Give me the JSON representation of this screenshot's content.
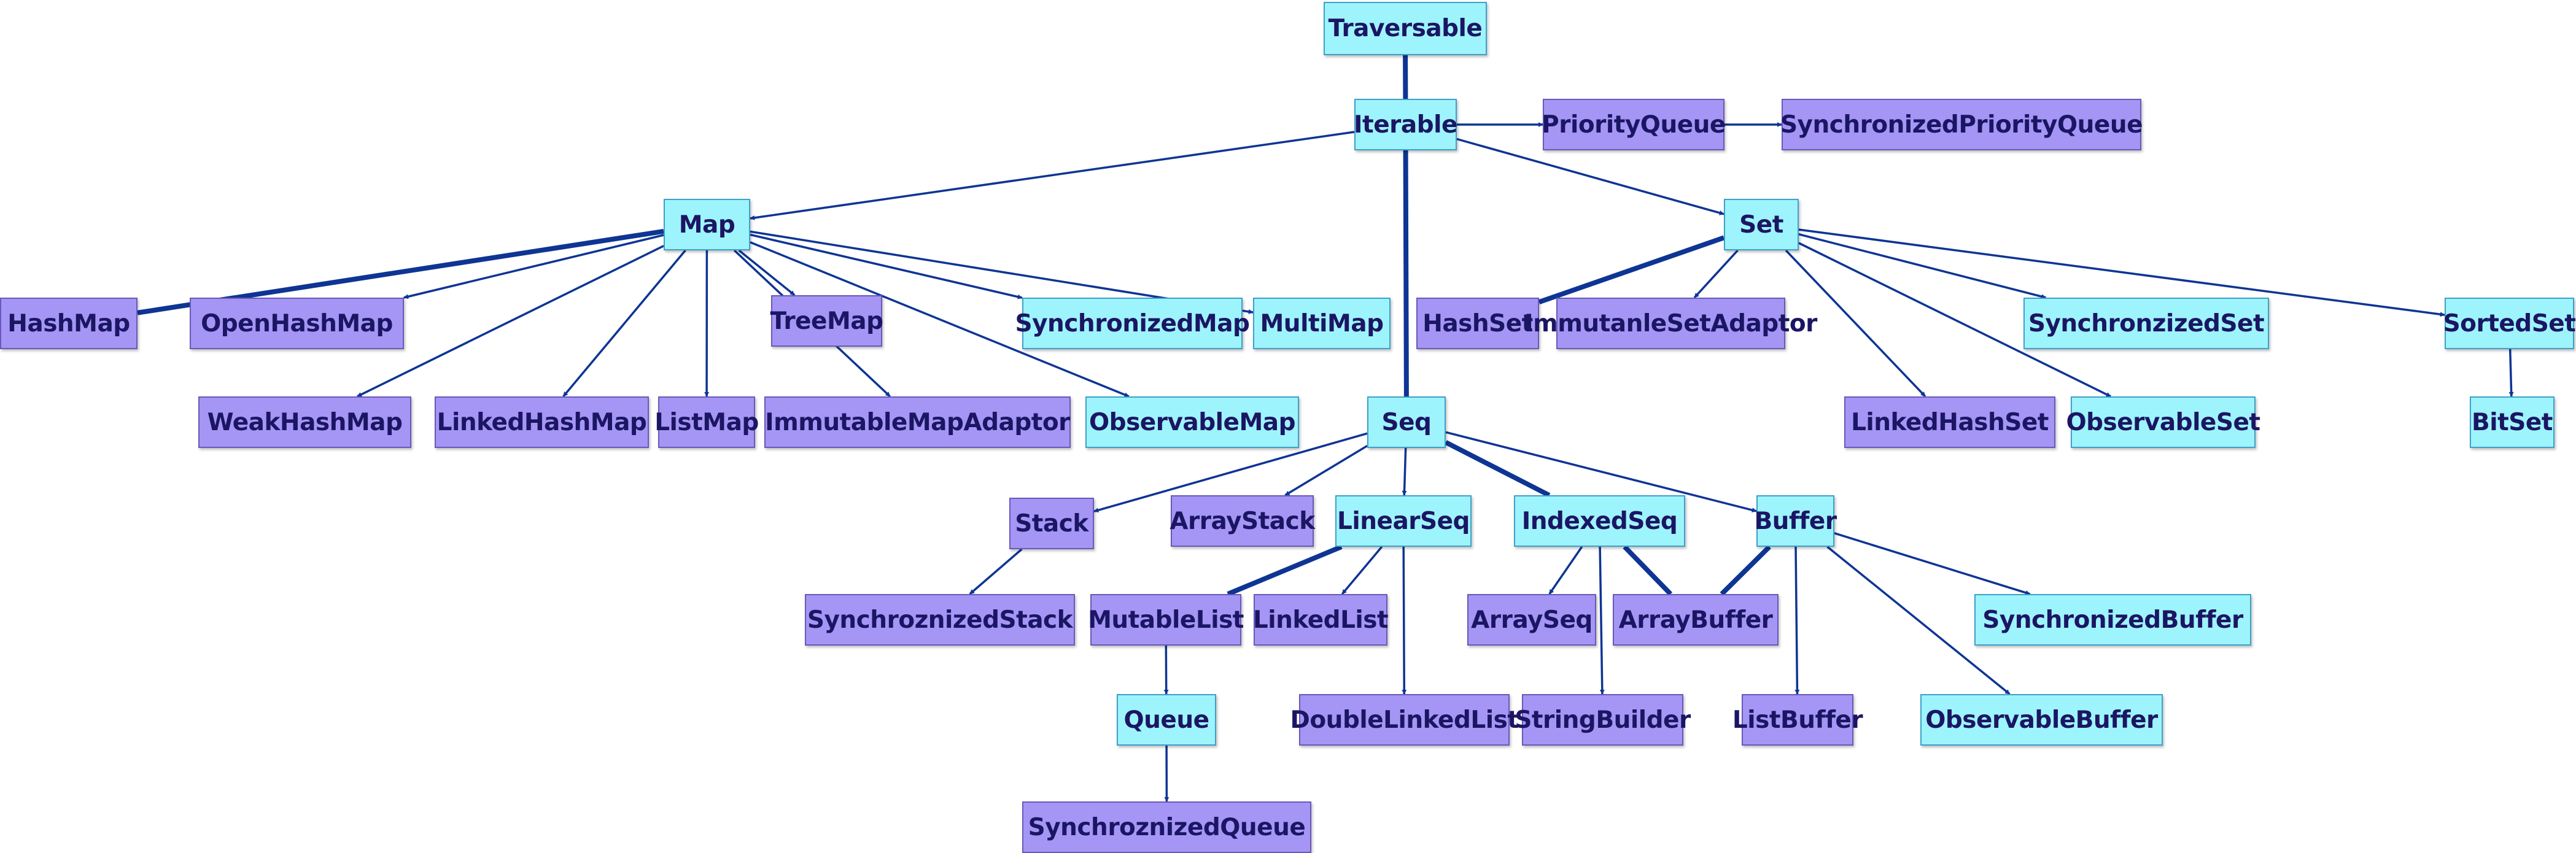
{
  "style": {
    "trait_fill": "#9ef4fc",
    "trait_border": "#3fa0c9",
    "class_fill": "#a596f5",
    "class_border": "#6a58b8",
    "label_color": "#1b1664",
    "edge_color": "#0e3594"
  },
  "node_kinds": [
    "trait",
    "class"
  ],
  "nodes": [
    {
      "id": "traversable",
      "label": "Traversable",
      "kind": "trait"
    },
    {
      "id": "iterable",
      "label": "Iterable",
      "kind": "trait"
    },
    {
      "id": "priority-queue",
      "label": "PriorityQueue",
      "kind": "class"
    },
    {
      "id": "synchronized-priority-queue",
      "label": "SynchronizedPriorityQueue",
      "kind": "class"
    },
    {
      "id": "map",
      "label": "Map",
      "kind": "trait"
    },
    {
      "id": "set",
      "label": "Set",
      "kind": "trait"
    },
    {
      "id": "hash-map",
      "label": "HashMap",
      "kind": "class"
    },
    {
      "id": "open-hash-map",
      "label": "OpenHashMap",
      "kind": "class"
    },
    {
      "id": "tree-map",
      "label": "TreeMap",
      "kind": "class"
    },
    {
      "id": "synchronized-map",
      "label": "SynchronizedMap",
      "kind": "trait"
    },
    {
      "id": "multi-map",
      "label": "MultiMap",
      "kind": "trait"
    },
    {
      "id": "hash-set",
      "label": "HashSet",
      "kind": "class"
    },
    {
      "id": "immutanle-set-adaptor",
      "label": "ImmutanleSetAdaptor",
      "kind": "class"
    },
    {
      "id": "synchronized-set",
      "label": "SynchronzizedSet",
      "kind": "trait"
    },
    {
      "id": "sorted-set",
      "label": "SortedSet",
      "kind": "trait"
    },
    {
      "id": "weak-hash-map",
      "label": "WeakHashMap",
      "kind": "class"
    },
    {
      "id": "linked-hash-map",
      "label": "LinkedHashMap",
      "kind": "class"
    },
    {
      "id": "list-map",
      "label": "ListMap",
      "kind": "class"
    },
    {
      "id": "immutable-map-adaptor",
      "label": "ImmutableMapAdaptor",
      "kind": "class"
    },
    {
      "id": "observable-map",
      "label": "ObservableMap",
      "kind": "trait"
    },
    {
      "id": "seq",
      "label": "Seq",
      "kind": "trait"
    },
    {
      "id": "linked-hash-set",
      "label": "LinkedHashSet",
      "kind": "class"
    },
    {
      "id": "observable-set",
      "label": "ObservableSet",
      "kind": "trait"
    },
    {
      "id": "bit-set",
      "label": "BitSet",
      "kind": "trait"
    },
    {
      "id": "stack",
      "label": "Stack",
      "kind": "class"
    },
    {
      "id": "array-stack",
      "label": "ArrayStack",
      "kind": "class"
    },
    {
      "id": "linear-seq",
      "label": "LinearSeq",
      "kind": "trait"
    },
    {
      "id": "indexed-seq",
      "label": "IndexedSeq",
      "kind": "trait"
    },
    {
      "id": "buffer",
      "label": "Buffer",
      "kind": "trait"
    },
    {
      "id": "synchronized-stack",
      "label": "SynchroznizedStack",
      "kind": "class"
    },
    {
      "id": "mutable-list",
      "label": "MutableList",
      "kind": "class"
    },
    {
      "id": "linked-list",
      "label": "LinkedList",
      "kind": "class"
    },
    {
      "id": "array-seq",
      "label": "ArraySeq",
      "kind": "class"
    },
    {
      "id": "array-buffer",
      "label": "ArrayBuffer",
      "kind": "class"
    },
    {
      "id": "synchronized-buffer",
      "label": "SynchronizedBuffer",
      "kind": "trait"
    },
    {
      "id": "queue",
      "label": "Queue",
      "kind": "trait"
    },
    {
      "id": "double-linked-list",
      "label": "DoubleLinkedList",
      "kind": "class"
    },
    {
      "id": "string-builder",
      "label": "StringBuilder",
      "kind": "class"
    },
    {
      "id": "list-buffer",
      "label": "ListBuffer",
      "kind": "class"
    },
    {
      "id": "observable-buffer",
      "label": "ObservableBuffer",
      "kind": "trait"
    },
    {
      "id": "synchronized-queue",
      "label": "SynchroznizedQueue",
      "kind": "class"
    }
  ],
  "edges": [
    {
      "from": "traversable",
      "to": "iterable",
      "bold": true
    },
    {
      "from": "iterable",
      "to": "priority-queue",
      "bold": false
    },
    {
      "from": "priority-queue",
      "to": "synchronized-priority-queue",
      "bold": false
    },
    {
      "from": "iterable",
      "to": "map",
      "bold": false
    },
    {
      "from": "iterable",
      "to": "set",
      "bold": false
    },
    {
      "from": "iterable",
      "to": "seq",
      "bold": true
    },
    {
      "from": "map",
      "to": "hash-map",
      "bold": true
    },
    {
      "from": "map",
      "to": "open-hash-map",
      "bold": false
    },
    {
      "from": "map",
      "to": "weak-hash-map",
      "bold": false
    },
    {
      "from": "map",
      "to": "linked-hash-map",
      "bold": false
    },
    {
      "from": "map",
      "to": "list-map",
      "bold": false
    },
    {
      "from": "map",
      "to": "immutable-map-adaptor",
      "bold": false
    },
    {
      "from": "map",
      "to": "tree-map",
      "bold": false
    },
    {
      "from": "map",
      "to": "observable-map",
      "bold": false
    },
    {
      "from": "map",
      "to": "synchronized-map",
      "bold": false
    },
    {
      "from": "map",
      "to": "multi-map",
      "bold": false
    },
    {
      "from": "set",
      "to": "hash-set",
      "bold": true
    },
    {
      "from": "set",
      "to": "immutanle-set-adaptor",
      "bold": false
    },
    {
      "from": "set",
      "to": "linked-hash-set",
      "bold": false
    },
    {
      "from": "set",
      "to": "observable-set",
      "bold": false
    },
    {
      "from": "set",
      "to": "synchronized-set",
      "bold": false
    },
    {
      "from": "set",
      "to": "sorted-set",
      "bold": false
    },
    {
      "from": "sorted-set",
      "to": "bit-set",
      "bold": false
    },
    {
      "from": "seq",
      "to": "stack",
      "bold": false
    },
    {
      "from": "seq",
      "to": "array-stack",
      "bold": false
    },
    {
      "from": "seq",
      "to": "linear-seq",
      "bold": false
    },
    {
      "from": "seq",
      "to": "indexed-seq",
      "bold": true
    },
    {
      "from": "seq",
      "to": "buffer",
      "bold": false
    },
    {
      "from": "stack",
      "to": "synchronized-stack",
      "bold": false
    },
    {
      "from": "linear-seq",
      "to": "mutable-list",
      "bold": true
    },
    {
      "from": "linear-seq",
      "to": "linked-list",
      "bold": false
    },
    {
      "from": "linear-seq",
      "to": "double-linked-list",
      "bold": false
    },
    {
      "from": "indexed-seq",
      "to": "array-seq",
      "bold": false
    },
    {
      "from": "indexed-seq",
      "to": "array-buffer",
      "bold": true
    },
    {
      "from": "indexed-seq",
      "to": "string-builder",
      "bold": false
    },
    {
      "from": "buffer",
      "to": "array-buffer",
      "bold": true
    },
    {
      "from": "buffer",
      "to": "list-buffer",
      "bold": false
    },
    {
      "from": "buffer",
      "to": "observable-buffer",
      "bold": false
    },
    {
      "from": "buffer",
      "to": "synchronized-buffer",
      "bold": false
    },
    {
      "from": "mutable-list",
      "to": "queue",
      "bold": false
    },
    {
      "from": "queue",
      "to": "synchronized-queue",
      "bold": false
    }
  ]
}
